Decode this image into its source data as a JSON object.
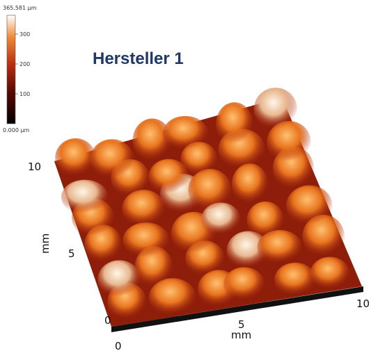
{
  "colorbar": {
    "max_label": "365.581 µm",
    "min_label": "0.000 µm",
    "ticks": [
      "300",
      "200",
      "100"
    ]
  },
  "title": "Hersteller 1",
  "axes": {
    "y_max": "10",
    "y_mid": "5",
    "y_unit": "mm",
    "y_min": "0",
    "x_min": "0",
    "x_mid": "5",
    "x_unit": "mm",
    "x_max": "10"
  }
}
